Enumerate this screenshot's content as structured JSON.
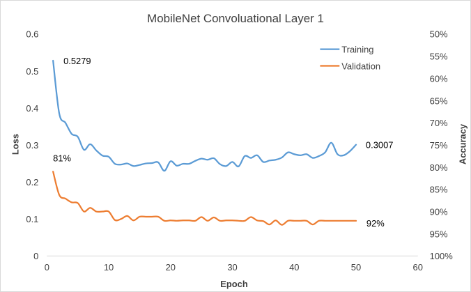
{
  "chart_data": {
    "type": "line",
    "title": "MobileNet  Convoluational  Layer 1",
    "xlabel": "Epoch",
    "ylabel": "Loss",
    "y2label": "Accuracy",
    "xlim": [
      0,
      60
    ],
    "ylim": [
      0,
      0.6
    ],
    "x_ticks": [
      "0",
      "10",
      "20",
      "30",
      "40",
      "50",
      "60"
    ],
    "y_ticks": [
      "0",
      "0.1",
      "0.2",
      "0.3",
      "0.4",
      "0.5",
      "0.6"
    ],
    "y2_ticks": [
      "50%",
      "55%",
      "60%",
      "65%",
      "70%",
      "75%",
      "80%",
      "85%",
      "90%",
      "95%",
      "100%"
    ],
    "y2_direction": "inverted (50% top, 100% bottom)",
    "grid": false,
    "legend_position": "top-right",
    "x": [
      1,
      2,
      3,
      4,
      5,
      6,
      7,
      8,
      9,
      10,
      11,
      12,
      13,
      14,
      15,
      16,
      17,
      18,
      19,
      20,
      21,
      22,
      23,
      24,
      25,
      26,
      27,
      28,
      29,
      30,
      31,
      32,
      33,
      34,
      35,
      36,
      37,
      38,
      39,
      40,
      41,
      42,
      43,
      44,
      45,
      46,
      47,
      48,
      49,
      50
    ],
    "series": [
      {
        "name": "Training",
        "color": "#5b9bd5",
        "values": [
          0.5279,
          0.385,
          0.36,
          0.33,
          0.322,
          0.287,
          0.302,
          0.285,
          0.271,
          0.268,
          0.249,
          0.247,
          0.25,
          0.243,
          0.246,
          0.25,
          0.251,
          0.253,
          0.23,
          0.256,
          0.244,
          0.249,
          0.249,
          0.257,
          0.263,
          0.26,
          0.264,
          0.248,
          0.243,
          0.254,
          0.242,
          0.27,
          0.265,
          0.272,
          0.254,
          0.258,
          0.26,
          0.266,
          0.28,
          0.275,
          0.272,
          0.275,
          0.265,
          0.27,
          0.28,
          0.306,
          0.275,
          0.272,
          0.283,
          0.3007
        ]
      },
      {
        "name": "Validation",
        "color": "#ed7d31",
        "values": [
          0.228,
          0.165,
          0.155,
          0.145,
          0.143,
          0.12,
          0.13,
          0.12,
          0.12,
          0.12,
          0.097,
          0.1,
          0.108,
          0.096,
          0.106,
          0.106,
          0.106,
          0.106,
          0.095,
          0.096,
          0.095,
          0.096,
          0.096,
          0.095,
          0.105,
          0.095,
          0.104,
          0.095,
          0.096,
          0.096,
          0.095,
          0.095,
          0.105,
          0.096,
          0.094,
          0.085,
          0.096,
          0.084,
          0.095,
          0.095,
          0.095,
          0.095,
          0.085,
          0.095,
          0.095,
          0.095,
          0.095,
          0.095,
          0.095,
          0.095
        ]
      }
    ],
    "annotations": [
      {
        "text": "0.5279",
        "x": 1,
        "y": 0.5279
      },
      {
        "text": "0.3007",
        "x": 50,
        "y": 0.3007
      },
      {
        "text": "81%",
        "x": 1,
        "y": 0.228
      },
      {
        "text": "92%",
        "x": 50,
        "y": 0.095
      }
    ]
  }
}
